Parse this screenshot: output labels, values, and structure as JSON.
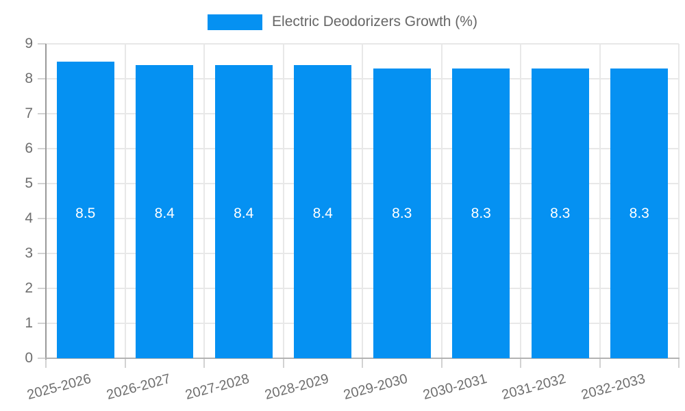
{
  "chart_data": {
    "type": "bar",
    "title": "Electric Deodorizers Growth (%)",
    "categories": [
      "2025-2026",
      "2026-2027",
      "2027-2028",
      "2028-2029",
      "2029-2030",
      "2030-2031",
      "2031-2032",
      "2032-2033"
    ],
    "values": [
      8.5,
      8.4,
      8.4,
      8.4,
      8.3,
      8.3,
      8.3,
      8.3
    ],
    "value_labels": [
      "8.5",
      "8.4",
      "8.4",
      "8.4",
      "8.3",
      "8.3",
      "8.3",
      "8.3"
    ],
    "xlabel": "",
    "ylabel": "",
    "ylim": [
      0,
      9
    ],
    "yticks": [
      0,
      1,
      2,
      3,
      4,
      5,
      6,
      7,
      8,
      9
    ],
    "grid": true,
    "legend": {
      "position": "top",
      "entries": [
        "Electric Deodorizers Growth (%)"
      ]
    },
    "colors": {
      "bar": "#0591f2",
      "value_label": "#ffffff",
      "axis_text": "#6e6e6e",
      "legend_text": "#666666",
      "grid_line": "#e8e8e8",
      "tick_line": "#d2d2d2",
      "y_axis_line": "#9a9a9a",
      "x_axis_line": "#b2b2b2",
      "background": "#ffffff"
    }
  }
}
